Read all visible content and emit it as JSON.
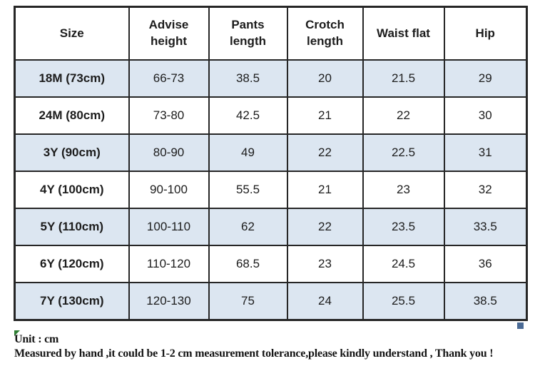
{
  "chart_data": {
    "type": "table",
    "columns": [
      "Size",
      "Advise height",
      "Pants length",
      "Crotch length",
      "Waist flat",
      "Hip"
    ],
    "rows": [
      {
        "size": "18M (73cm)",
        "values": [
          "66-73",
          "38.5",
          "20",
          "21.5",
          "29"
        ]
      },
      {
        "size": "24M (80cm)",
        "values": [
          "73-80",
          "42.5",
          "21",
          "22",
          "30"
        ]
      },
      {
        "size": "3Y (90cm)",
        "values": [
          "80-90",
          "49",
          "22",
          "22.5",
          "31"
        ]
      },
      {
        "size": "4Y (100cm)",
        "values": [
          "90-100",
          "55.5",
          "21",
          "23",
          "32"
        ]
      },
      {
        "size": "5Y (110cm)",
        "values": [
          "100-110",
          "62",
          "22",
          "23.5",
          "33.5"
        ]
      },
      {
        "size": "6Y (120cm)",
        "values": [
          "110-120",
          "68.5",
          "23",
          "24.5",
          "36"
        ]
      },
      {
        "size": "7Y (130cm)",
        "values": [
          "120-130",
          "75",
          "24",
          "25.5",
          "38.5"
        ]
      }
    ],
    "layout": {
      "alt_row_indices": [
        0,
        2,
        4,
        6
      ],
      "grid": "on"
    }
  },
  "footer": {
    "unit_label": "Unit : cm",
    "tolerance_note": "Measured by hand ,it could be 1-2 cm measurement tolerance,please kindly understand , Thank you !"
  },
  "colors": {
    "row_alt_fill": "#dce6f1",
    "row_plain_fill": "#ffffff",
    "border": "#262626",
    "text": "#1c1c1c",
    "corner_handle_green": "#2e7d32",
    "corner_handle_blue": "#4a6a95"
  }
}
